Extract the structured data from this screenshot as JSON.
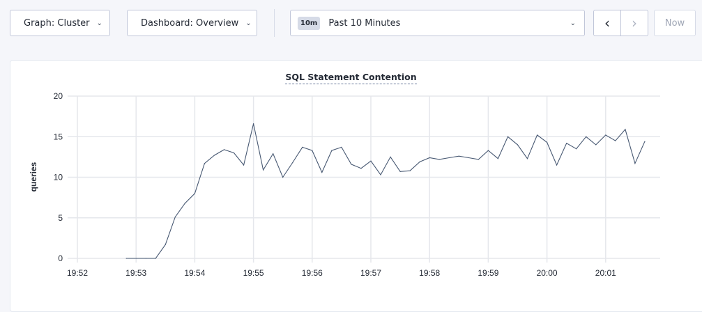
{
  "toolbar": {
    "graph_label": "Graph: Cluster",
    "dashboard_label": "Dashboard: Overview",
    "time_badge": "10m",
    "time_label": "Past 10 Minutes",
    "now_label": "Now",
    "icons": {
      "dropdown": "chevron-down-icon",
      "prev": "chevron-left-icon",
      "next": "chevron-right-icon"
    }
  },
  "chart_data": {
    "type": "line",
    "title": "SQL Statement Contention",
    "ylabel": "queries",
    "xlabel": "",
    "ylim": [
      0,
      20
    ],
    "yticks": [
      0,
      5,
      10,
      15,
      20
    ],
    "xlim": [
      "19:52:00",
      "20:02:00"
    ],
    "xticks": [
      "19:52",
      "19:53",
      "19:54",
      "19:55",
      "19:56",
      "19:57",
      "19:58",
      "19:59",
      "20:00",
      "20:01"
    ],
    "grid": true,
    "line_color": "#475872",
    "series": [
      {
        "x": [
          "19:52:50",
          "19:53:00",
          "19:53:10",
          "19:53:20",
          "19:53:30",
          "19:53:40",
          "19:53:50",
          "19:54:00",
          "19:54:10",
          "19:54:20",
          "19:54:30",
          "19:54:40",
          "19:54:50",
          "19:55:00",
          "19:55:10",
          "19:55:20",
          "19:55:30",
          "19:55:40",
          "19:55:50",
          "19:56:00",
          "19:56:10",
          "19:56:20",
          "19:56:30",
          "19:56:40",
          "19:56:50",
          "19:57:00",
          "19:57:10",
          "19:57:20",
          "19:57:30",
          "19:57:40",
          "19:57:50",
          "19:58:00",
          "19:58:10",
          "19:58:20",
          "19:58:30",
          "19:58:40",
          "19:58:50",
          "19:59:00",
          "19:59:10",
          "19:59:20",
          "19:59:30",
          "19:59:40",
          "19:59:50",
          "20:00:00",
          "20:00:10",
          "20:00:20",
          "20:00:30",
          "20:00:40",
          "20:00:50",
          "20:01:00",
          "20:01:10",
          "20:01:20",
          "20:01:30",
          "20:01:40"
        ],
        "values": [
          0,
          0,
          0,
          0,
          1.7,
          5.1,
          6.8,
          8.0,
          11.7,
          12.7,
          13.4,
          13.0,
          11.5,
          16.6,
          10.9,
          12.9,
          10.0,
          11.8,
          13.7,
          13.3,
          10.6,
          13.3,
          13.7,
          11.6,
          11.1,
          12.0,
          10.3,
          12.5,
          10.7,
          10.8,
          11.9,
          12.4,
          12.2,
          12.4,
          12.6,
          12.4,
          12.2,
          13.3,
          12.3,
          15.0,
          14.0,
          12.3,
          15.2,
          14.3,
          11.5,
          14.2,
          13.5,
          15.0,
          14.0,
          15.2,
          14.5,
          15.9,
          11.7,
          14.4
        ]
      }
    ]
  }
}
